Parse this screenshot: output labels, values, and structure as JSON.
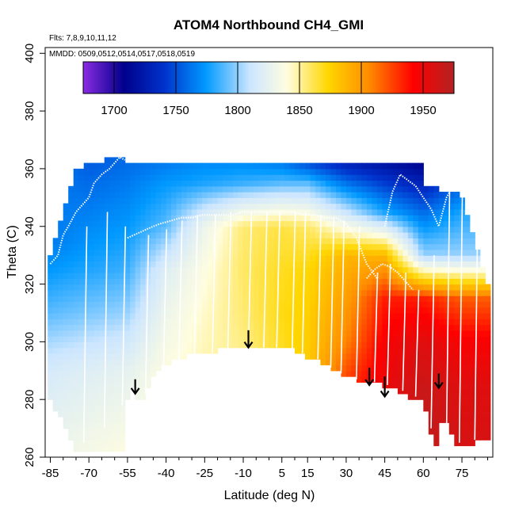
{
  "chart_data": {
    "type": "heatmap",
    "title": "ATOM4 Northbound CH4_GMI",
    "xlabel": "Latitude (deg N)",
    "ylabel": "Theta (C)",
    "xlim": [
      -87,
      87
    ],
    "ylim": [
      260,
      402
    ],
    "x_ticks": [
      -85,
      -70,
      -55,
      -40,
      -25,
      -10,
      5,
      15,
      30,
      45,
      60,
      75
    ],
    "x_minor_ticks": [
      -80,
      -75,
      -65,
      -60,
      -50,
      -45,
      -35,
      -30,
      -20,
      -15,
      -5,
      0,
      10,
      20,
      25,
      35,
      40,
      50,
      55,
      65,
      70,
      80,
      85
    ],
    "y_ticks": [
      260,
      280,
      300,
      320,
      340,
      360,
      380,
      400
    ],
    "annotations": {
      "flights": "Flts: 7,8,9,10,11,12",
      "dates": "MMDD: 0509,0512,0514,0517,0518,0519"
    },
    "colorbar": {
      "min": 1675,
      "max": 1975,
      "ticks": [
        1700,
        1750,
        1800,
        1850,
        1900,
        1950
      ],
      "tick_labels": [
        "1700",
        "1750",
        "1800",
        "1850",
        "1900",
        "1950"
      ],
      "colors": [
        "#8a2be2",
        "#00008b",
        "#0033cc",
        "#0099ff",
        "#cce6ff",
        "#fffde0",
        "#ffd700",
        "#ff8c00",
        "#ff0000",
        "#b22222"
      ]
    },
    "surface_boundary": [
      [
        -85,
        280
      ],
      [
        -80,
        272
      ],
      [
        -75,
        263
      ],
      [
        -70,
        263
      ],
      [
        -65,
        263
      ],
      [
        -60,
        263
      ],
      [
        -56,
        263
      ],
      [
        -56,
        278
      ],
      [
        -53,
        285
      ],
      [
        -50,
        279
      ],
      [
        -47,
        285
      ],
      [
        -44,
        290
      ],
      [
        -40,
        292
      ],
      [
        -35,
        294
      ],
      [
        -30,
        296
      ],
      [
        -25,
        297
      ],
      [
        -20,
        297
      ],
      [
        -15,
        298
      ],
      [
        -10,
        298
      ],
      [
        -5,
        299
      ],
      [
        0,
        299
      ],
      [
        5,
        298
      ],
      [
        10,
        297
      ],
      [
        15,
        295
      ],
      [
        20,
        293
      ],
      [
        25,
        290
      ],
      [
        30,
        288
      ],
      [
        35,
        287
      ],
      [
        40,
        286
      ],
      [
        45,
        285
      ],
      [
        50,
        283
      ],
      [
        55,
        281
      ],
      [
        60,
        281
      ],
      [
        62,
        270
      ],
      [
        65,
        265
      ],
      [
        68,
        275
      ],
      [
        72,
        265
      ],
      [
        78,
        263
      ],
      [
        83,
        267
      ]
    ],
    "field": [
      {
        "lat": -85,
        "theta": [
          262,
          290,
          310,
          325,
          335
        ],
        "ch4": [
          1830,
          1815,
          1790,
          1775,
          1765
        ]
      },
      {
        "lat": -70,
        "theta": [
          262,
          290,
          310,
          325,
          340,
          355,
          362
        ],
        "ch4": [
          1835,
          1820,
          1795,
          1780,
          1770,
          1760,
          1755
        ]
      },
      {
        "lat": -55,
        "theta": [
          262,
          290,
          310,
          325,
          340,
          355,
          362
        ],
        "ch4": [
          1840,
          1825,
          1800,
          1785,
          1775,
          1765,
          1760
        ]
      },
      {
        "lat": -40,
        "theta": [
          290,
          310,
          325,
          340,
          355,
          362
        ],
        "ch4": [
          1840,
          1830,
          1820,
          1790,
          1775,
          1765
        ]
      },
      {
        "lat": -25,
        "theta": [
          297,
          310,
          325,
          340,
          355,
          362
        ],
        "ch4": [
          1848,
          1845,
          1840,
          1830,
          1780,
          1770
        ]
      },
      {
        "lat": -10,
        "theta": [
          298,
          310,
          325,
          340,
          355,
          362
        ],
        "ch4": [
          1855,
          1858,
          1860,
          1858,
          1785,
          1770
        ]
      },
      {
        "lat": 5,
        "theta": [
          298,
          310,
          325,
          340,
          355,
          362
        ],
        "ch4": [
          1870,
          1872,
          1870,
          1865,
          1790,
          1765
        ]
      },
      {
        "lat": 15,
        "theta": [
          295,
          310,
          325,
          340,
          355,
          362
        ],
        "ch4": [
          1880,
          1878,
          1875,
          1860,
          1790,
          1750
        ]
      },
      {
        "lat": 30,
        "theta": [
          288,
          300,
          315,
          330,
          345,
          362
        ],
        "ch4": [
          1925,
          1910,
          1900,
          1890,
          1810,
          1730
        ]
      },
      {
        "lat": 45,
        "theta": [
          285,
          300,
          315,
          330,
          345,
          362
        ],
        "ch4": [
          1950,
          1945,
          1935,
          1890,
          1780,
          1720
        ]
      },
      {
        "lat": 60,
        "theta": [
          265,
          285,
          300,
          315,
          330,
          345,
          362
        ],
        "ch4": [
          1970,
          1965,
          1955,
          1935,
          1800,
          1760,
          1710
        ]
      },
      {
        "lat": 75,
        "theta": [
          263,
          285,
          300,
          315,
          330,
          345,
          362
        ],
        "ch4": [
          1960,
          1955,
          1945,
          1920,
          1800,
          1780,
          1740
        ]
      }
    ],
    "flight_tracks": [
      {
        "lat": [
          -85,
          -82,
          -80,
          -78,
          -75,
          -72,
          -70,
          -68,
          -65,
          -62,
          -60,
          -58,
          -56
        ],
        "theta": [
          327,
          330,
          337,
          340,
          345,
          348,
          350,
          355,
          358,
          360,
          362,
          364,
          363
        ]
      },
      {
        "lat": [
          -55,
          -50,
          -45,
          -42,
          -38,
          -34,
          -30,
          -26,
          -22,
          -18,
          -14,
          -10,
          -6,
          -2,
          2,
          6,
          10,
          14,
          18,
          22,
          26,
          30,
          34,
          38,
          42
        ],
        "theta": [
          336,
          338,
          340,
          341,
          342,
          343,
          343,
          344,
          344,
          344,
          344,
          345,
          345,
          345,
          345,
          345,
          345,
          344,
          344,
          343,
          343,
          341,
          336,
          327,
          322
        ]
      },
      {
        "lat": [
          38,
          41,
          44,
          47,
          50,
          53,
          56
        ],
        "theta": [
          322,
          325,
          327,
          326,
          324,
          321,
          318
        ]
      },
      {
        "lat": [
          45,
          48,
          51,
          54,
          57,
          60,
          63,
          66,
          69,
          72,
          75,
          78
        ],
        "theta": [
          340,
          352,
          358,
          356,
          354,
          350,
          346,
          340,
          350,
          355,
          354,
          350
        ]
      }
    ],
    "profiles": [
      {
        "lat": -72,
        "theta": [
          265,
          340
        ]
      },
      {
        "lat": -64,
        "theta": [
          270,
          345
        ]
      },
      {
        "lat": -57,
        "theta": [
          278,
          340
        ]
      },
      {
        "lat": -48,
        "theta": [
          282,
          337
        ]
      },
      {
        "lat": -41,
        "theta": [
          290,
          339
        ]
      },
      {
        "lat": -35,
        "theta": [
          293,
          342
        ]
      },
      {
        "lat": -29,
        "theta": [
          295,
          344
        ]
      },
      {
        "lat": -22,
        "theta": [
          296,
          344
        ]
      },
      {
        "lat": -16,
        "theta": [
          297,
          345
        ]
      },
      {
        "lat": -8,
        "theta": [
          298,
          345
        ]
      },
      {
        "lat": -2,
        "theta": [
          298,
          345
        ]
      },
      {
        "lat": 3,
        "theta": [
          298,
          345
        ]
      },
      {
        "lat": 9,
        "theta": [
          297,
          345
        ]
      },
      {
        "lat": 13,
        "theta": [
          296,
          345
        ]
      },
      {
        "lat": 19,
        "theta": [
          294,
          344
        ]
      },
      {
        "lat": 24,
        "theta": [
          291,
          343
        ]
      },
      {
        "lat": 28,
        "theta": [
          289,
          342
        ]
      },
      {
        "lat": 34,
        "theta": [
          287,
          340
        ]
      },
      {
        "lat": 41,
        "theta": [
          286,
          324
        ]
      },
      {
        "lat": 46,
        "theta": [
          285,
          327
        ]
      },
      {
        "lat": 52,
        "theta": [
          283,
          324
        ]
      },
      {
        "lat": 57,
        "theta": [
          281,
          318
        ]
      },
      {
        "lat": 63,
        "theta": [
          270,
          330
        ]
      },
      {
        "lat": 69,
        "theta": [
          268,
          352
        ]
      },
      {
        "lat": 74,
        "theta": [
          265,
          354
        ]
      },
      {
        "lat": 80,
        "theta": [
          266,
          350
        ]
      }
    ],
    "arrows": [
      {
        "lat": -52,
        "theta_top": 287,
        "theta_tip": 282
      },
      {
        "lat": -8,
        "theta_top": 304,
        "theta_tip": 298
      },
      {
        "lat": 39,
        "theta_top": 291,
        "theta_tip": 285
      },
      {
        "lat": 45,
        "theta_top": 288,
        "theta_tip": 281
      },
      {
        "lat": 66,
        "theta_top": 289,
        "theta_tip": 284
      }
    ]
  }
}
